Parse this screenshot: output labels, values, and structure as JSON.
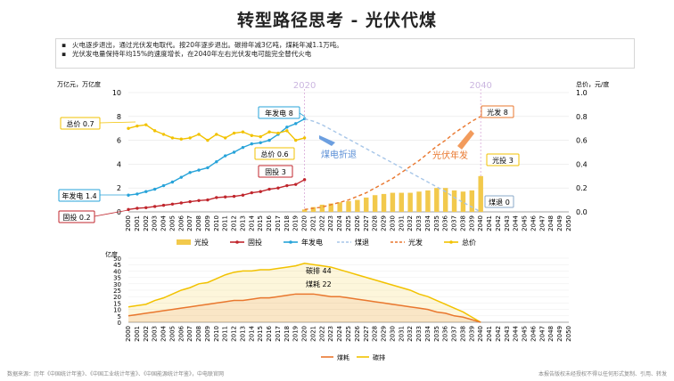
{
  "title": "转型路径思考 - 光伏代煤",
  "notes": [
    "火电逐步退出，通过光伏发电取代。按20年逐步退出。碳排年减3亿吨，煤耗年减1.1万吨。",
    "光伏发电量保持年均15%的速度增长，在2040年左右光伏发电可能完全替代火电"
  ],
  "colors": {
    "solar_invest": "#F2C94C",
    "invest": "#C0262D",
    "annual_gen": "#27A3D9",
    "coal_exit": "#A7C6E8",
    "solar_gen": "#E9772E",
    "total_price": "#F2C200",
    "coal_use": "#E9772E",
    "carbon": "#F2C200"
  },
  "chart_data": [
    {
      "type": "line",
      "title": "",
      "ylabel_left": "万亿元，万亿度",
      "ylabel_right": "总价，元/度",
      "ylim_left": [
        0,
        10
      ],
      "ylim_right": [
        0,
        1.0
      ],
      "yticks_left": [
        "0",
        "2",
        "4",
        "6",
        "8",
        "10"
      ],
      "yticks_right": [
        "0.0",
        "0.2",
        "0.4",
        "0.6",
        "0.8",
        "1.0"
      ],
      "x": [
        2000,
        2001,
        2002,
        2003,
        2004,
        2005,
        2006,
        2007,
        2008,
        2009,
        2010,
        2011,
        2012,
        2013,
        2014,
        2015,
        2016,
        2017,
        2018,
        2019,
        2020,
        2021,
        2022,
        2023,
        2024,
        2025,
        2026,
        2027,
        2028,
        2029,
        2030,
        2031,
        2032,
        2033,
        2034,
        2035,
        2036,
        2037,
        2038,
        2039,
        2040,
        2041,
        2042,
        2043,
        2044,
        2045,
        2046,
        2047,
        2048,
        2049,
        2050
      ],
      "markers": [
        "2020",
        "2040"
      ],
      "series": [
        {
          "name": "光投",
          "type": "bar",
          "axis": "right",
          "x": [
            2020,
            2021,
            2022,
            2023,
            2024,
            2025,
            2026,
            2027,
            2028,
            2029,
            2030,
            2031,
            2032,
            2033,
            2034,
            2035,
            2036,
            2037,
            2038,
            2039,
            2040
          ],
          "values": [
            0.02,
            0.04,
            0.06,
            0.07,
            0.08,
            0.09,
            0.1,
            0.12,
            0.14,
            0.15,
            0.16,
            0.16,
            0.16,
            0.17,
            0.18,
            0.2,
            0.2,
            0.18,
            0.17,
            0.18,
            0.3
          ]
        },
        {
          "name": "固投",
          "type": "line",
          "axis": "left",
          "x": [
            2000,
            2001,
            2002,
            2003,
            2004,
            2005,
            2006,
            2007,
            2008,
            2009,
            2010,
            2011,
            2012,
            2013,
            2014,
            2015,
            2016,
            2017,
            2018,
            2019,
            2020
          ],
          "values": [
            0.2,
            0.3,
            0.35,
            0.45,
            0.55,
            0.65,
            0.75,
            0.85,
            0.95,
            1.0,
            1.2,
            1.25,
            1.3,
            1.4,
            1.6,
            1.7,
            1.9,
            2.0,
            2.2,
            2.3,
            2.7
          ]
        },
        {
          "name": "年发电",
          "type": "line",
          "axis": "left",
          "x": [
            2000,
            2001,
            2002,
            2003,
            2004,
            2005,
            2006,
            2007,
            2008,
            2009,
            2010,
            2011,
            2012,
            2013,
            2014,
            2015,
            2016,
            2017,
            2018,
            2019,
            2020
          ],
          "values": [
            1.4,
            1.5,
            1.7,
            1.9,
            2.2,
            2.5,
            2.9,
            3.3,
            3.5,
            3.7,
            4.2,
            4.7,
            5.0,
            5.4,
            5.7,
            5.8,
            6.0,
            6.5,
            7.1,
            7.4,
            7.8
          ]
        },
        {
          "name": "煤退",
          "type": "line",
          "style": "dashed",
          "axis": "left",
          "x": [
            2020,
            2021,
            2022,
            2023,
            2024,
            2025,
            2026,
            2027,
            2028,
            2029,
            2030,
            2031,
            2032,
            2033,
            2034,
            2035,
            2036,
            2037,
            2038,
            2039,
            2040
          ],
          "values": [
            7.8,
            7.6,
            7.3,
            6.9,
            6.5,
            6.1,
            5.7,
            5.3,
            4.9,
            4.5,
            4.1,
            3.7,
            3.3,
            2.9,
            2.5,
            2.1,
            1.7,
            1.2,
            0.8,
            0.4,
            0
          ]
        },
        {
          "name": "光发",
          "type": "line",
          "style": "dashed",
          "axis": "left",
          "x": [
            2020,
            2021,
            2022,
            2023,
            2024,
            2025,
            2026,
            2027,
            2028,
            2029,
            2030,
            2031,
            2032,
            2033,
            2034,
            2035,
            2036,
            2037,
            2038,
            2039,
            2040
          ],
          "values": [
            0.2,
            0.3,
            0.4,
            0.6,
            0.8,
            1.0,
            1.3,
            1.6,
            2.0,
            2.4,
            2.8,
            3.3,
            3.8,
            4.3,
            4.9,
            5.5,
            6.0,
            6.6,
            7.1,
            7.6,
            8.0
          ]
        },
        {
          "name": "总价",
          "type": "line",
          "axis": "right",
          "x": [
            2000,
            2001,
            2002,
            2003,
            2004,
            2005,
            2006,
            2007,
            2008,
            2009,
            2010,
            2011,
            2012,
            2013,
            2014,
            2015,
            2016,
            2017,
            2018,
            2019,
            2020
          ],
          "values": [
            0.7,
            0.72,
            0.73,
            0.68,
            0.65,
            0.62,
            0.61,
            0.62,
            0.65,
            0.6,
            0.65,
            0.62,
            0.66,
            0.67,
            0.64,
            0.63,
            0.67,
            0.66,
            0.68,
            0.6,
            0.62
          ]
        }
      ],
      "annotations": [
        "总价 0.7",
        "年发电 8",
        "总价 0.6",
        "固投 3",
        "年发电 1.4",
        "固投 0.2",
        "光发 8",
        "光投 3",
        "煤退 0",
        "煤电折退",
        "光伏年发"
      ]
    },
    {
      "type": "area",
      "title": "",
      "ylabel": "亿度",
      "ylim": [
        0,
        50
      ],
      "yticks": [
        "0",
        "5",
        "10",
        "15",
        "20",
        "25",
        "30",
        "35",
        "40",
        "45",
        "50"
      ],
      "x": [
        2000,
        2001,
        2002,
        2003,
        2004,
        2005,
        2006,
        2007,
        2008,
        2009,
        2010,
        2011,
        2012,
        2013,
        2014,
        2015,
        2016,
        2017,
        2018,
        2019,
        2020,
        2021,
        2022,
        2023,
        2024,
        2025,
        2026,
        2027,
        2028,
        2029,
        2030,
        2031,
        2032,
        2033,
        2034,
        2035,
        2036,
        2037,
        2038,
        2039,
        2040,
        2041,
        2042,
        2043,
        2044,
        2045,
        2046,
        2047,
        2048,
        2049,
        2050
      ],
      "series": [
        {
          "name": "煤耗",
          "values": [
            5,
            6,
            7,
            8,
            9,
            10,
            11,
            12,
            13,
            14,
            15,
            16,
            17,
            17,
            18,
            19,
            19,
            20,
            21,
            22,
            22,
            22,
            21,
            20,
            20,
            19,
            18,
            17,
            16,
            15,
            14,
            13,
            12,
            11,
            10,
            8,
            7,
            5,
            4,
            2,
            0,
            null,
            null,
            null,
            null,
            null,
            null,
            null,
            null,
            null,
            null
          ]
        },
        {
          "name": "碳排",
          "values": [
            12,
            13,
            14,
            17,
            19,
            22,
            25,
            27,
            30,
            31,
            34,
            37,
            39,
            40,
            40,
            41,
            41,
            42,
            43,
            44,
            46,
            45,
            44,
            43,
            41,
            39,
            37,
            35,
            33,
            31,
            29,
            27,
            25,
            22,
            20,
            17,
            14,
            11,
            8,
            4,
            0,
            null,
            null,
            null,
            null,
            null,
            null,
            null,
            null,
            null,
            null
          ]
        }
      ],
      "annotations": [
        "碳排 44",
        "煤耗 22"
      ]
    }
  ],
  "legend_top": [
    "光投",
    "固投",
    "年发电",
    "煤退",
    "光发",
    "总价"
  ],
  "legend_bottom": [
    "煤耗",
    "碳排"
  ],
  "footer": "数据来源：历年《中国统计年鉴》、《中国工业统计年鉴》、《中国能源统计年鉴》，中电联官网",
  "footer_right": "本报告版权未经授权不得以任何形式复制、引用、转发"
}
